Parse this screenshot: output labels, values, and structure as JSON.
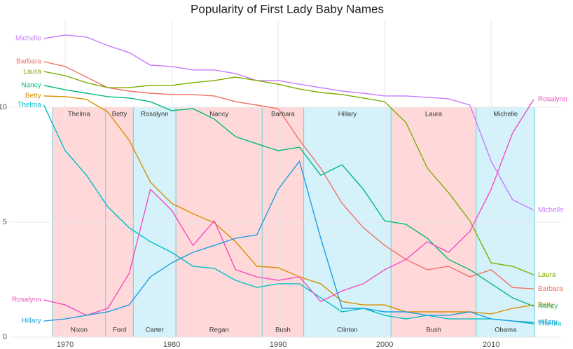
{
  "chart_data": {
    "type": "line",
    "title": "Popularity of First Lady Baby Names",
    "xlim": [
      1964.8,
      2016.5
    ],
    "ylim": [
      -0.09,
      13.81
    ],
    "xticks": [
      1970,
      1980,
      1990,
      2000,
      2010
    ],
    "yticks": [
      0,
      5,
      10
    ],
    "grid": true,
    "periods": [
      {
        "first_lady": "Thelma",
        "president": "Nixon",
        "start": 1968.8,
        "end": 1973.8,
        "color": "#ffd9da"
      },
      {
        "first_lady": "Betty",
        "president": "Ford",
        "start": 1973.8,
        "end": 1976.4,
        "color": "#ffd9da"
      },
      {
        "first_lady": "Rosalynn",
        "president": "Carter",
        "start": 1976.4,
        "end": 1980.4,
        "color": "#d5f2fa"
      },
      {
        "first_lady": "Nancy",
        "president": "Regan",
        "start": 1980.4,
        "end": 1988.5,
        "color": "#ffd9da"
      },
      {
        "first_lady": "Barbara",
        "president": "Bush",
        "start": 1988.5,
        "end": 1992.4,
        "color": "#ffd9da"
      },
      {
        "first_lady": "Hillary",
        "president": "Clinton",
        "start": 1992.4,
        "end": 2000.6,
        "color": "#d5f2fa"
      },
      {
        "first_lady": "Laura",
        "president": "Bush",
        "start": 2000.6,
        "end": 2008.6,
        "color": "#ffd9da"
      },
      {
        "first_lady": "Michelle",
        "president": "Obama",
        "start": 2008.6,
        "end": 2014.1,
        "color": "#d5f2fa"
      }
    ],
    "x": [
      1968,
      1970,
      1972,
      1974,
      1976,
      1978,
      1980,
      1982,
      1984,
      1986,
      1988,
      1990,
      1992,
      1994,
      1996,
      1998,
      2000,
      2002,
      2004,
      2006,
      2008,
      2010,
      2012,
      2014
    ],
    "series": [
      {
        "name": "Michelle",
        "color": "#c77cff",
        "values": [
          12.99,
          13.14,
          13.05,
          12.68,
          12.38,
          11.83,
          11.77,
          11.62,
          11.62,
          11.46,
          11.16,
          11.16,
          11.0,
          10.85,
          10.7,
          10.61,
          10.49,
          10.49,
          10.43,
          10.37,
          10.09,
          7.65,
          5.98,
          5.52
        ]
      },
      {
        "name": "Barbara",
        "color": "#f07167",
        "values": [
          11.98,
          11.77,
          11.31,
          10.85,
          10.7,
          10.61,
          10.55,
          10.55,
          10.49,
          10.24,
          10.09,
          9.94,
          8.57,
          7.35,
          5.82,
          4.76,
          3.99,
          3.38,
          2.93,
          3.08,
          2.62,
          2.93,
          2.16,
          2.1
        ]
      },
      {
        "name": "Laura",
        "color": "#7cae00",
        "values": [
          11.55,
          11.37,
          11.07,
          10.85,
          10.85,
          10.95,
          10.95,
          11.07,
          11.16,
          11.31,
          11.16,
          11.0,
          10.79,
          10.64,
          10.55,
          10.4,
          10.24,
          9.33,
          7.35,
          6.28,
          5.06,
          3.23,
          3.08,
          2.71
        ]
      },
      {
        "name": "Nancy",
        "color": "#00ba7a",
        "values": [
          10.95,
          10.76,
          10.61,
          10.46,
          10.4,
          10.24,
          9.85,
          9.94,
          9.48,
          8.72,
          8.41,
          8.11,
          8.26,
          7.04,
          7.5,
          6.43,
          5.06,
          4.91,
          4.3,
          3.38,
          2.93,
          2.32,
          1.71,
          1.34
        ]
      },
      {
        "name": "Betty",
        "color": "#d89000",
        "values": [
          10.49,
          10.46,
          10.34,
          9.79,
          8.57,
          6.74,
          5.82,
          5.37,
          4.97,
          4.15,
          3.08,
          3.02,
          2.62,
          2.32,
          1.55,
          1.4,
          1.4,
          1.1,
          1.1,
          1.1,
          1.1,
          1.01,
          1.25,
          1.4
        ]
      },
      {
        "name": "Thelma",
        "color": "#00bfc4",
        "values": [
          10.09,
          8.11,
          7.04,
          5.67,
          4.76,
          4.15,
          3.69,
          3.08,
          2.99,
          2.47,
          2.16,
          2.32,
          2.32,
          1.71,
          1.1,
          1.25,
          0.95,
          0.79,
          0.95,
          0.79,
          0.79,
          0.79,
          0.7,
          0.58
        ]
      },
      {
        "name": "Rosalynn",
        "color": "#f04fc0",
        "values": [
          1.62,
          1.4,
          0.95,
          1.25,
          2.77,
          6.43,
          5.52,
          3.99,
          5.06,
          2.93,
          2.62,
          2.47,
          2.62,
          1.55,
          2.01,
          2.32,
          2.93,
          3.38,
          4.15,
          3.69,
          4.6,
          6.43,
          8.87,
          10.34
        ]
      },
      {
        "name": "Hillary",
        "color": "#1e9ee0",
        "values": [
          0.7,
          0.79,
          0.95,
          1.1,
          1.4,
          2.62,
          3.23,
          3.69,
          3.99,
          4.3,
          4.45,
          6.43,
          7.65,
          4.3,
          1.25,
          1.25,
          1.1,
          1.1,
          0.95,
          0.95,
          1.1,
          0.79,
          0.7,
          0.64
        ]
      }
    ]
  }
}
